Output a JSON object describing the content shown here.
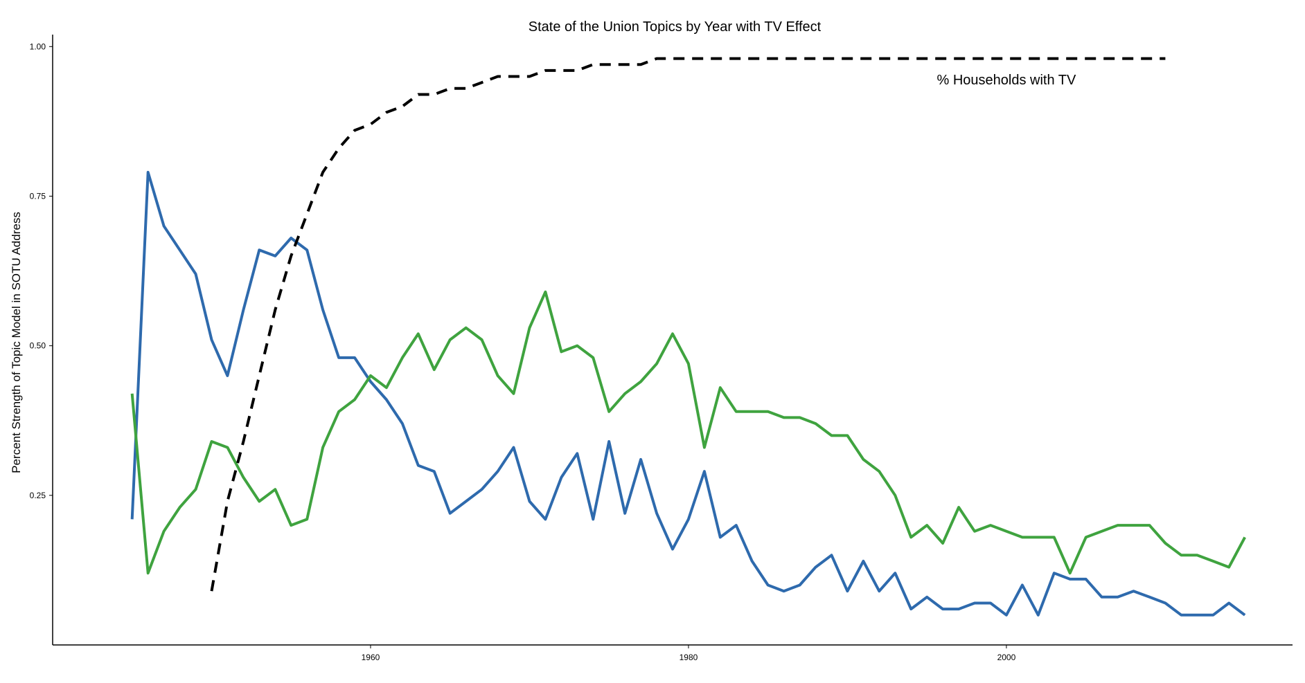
{
  "chart_data": {
    "type": "line",
    "title": "State of the Union Topics by Year with TV Effect",
    "xlabel": "",
    "ylabel": "Percent Strength of Topic Model in SOTU Address",
    "xlim": [
      1940,
      2018
    ],
    "ylim": [
      0.0,
      1.02
    ],
    "x_ticks": [
      1960,
      1980,
      2000
    ],
    "x_tick_labels": [
      "1960",
      "1980",
      "2000"
    ],
    "y_ticks": [
      0.25,
      0.5,
      0.75,
      1.0
    ],
    "y_tick_labels": [
      "0.25",
      "0.50",
      "0.75",
      "1.00"
    ],
    "grid": false,
    "legend": "none",
    "annotations": [
      {
        "text": "% Households with TV",
        "x": 2000,
        "y": 0.945
      }
    ],
    "series": [
      {
        "color": "#2e6aad",
        "style": "solid",
        "x": [
          1945,
          1946,
          1947,
          1948,
          1949,
          1950,
          1951,
          1952,
          1953,
          1954,
          1955,
          1956,
          1957,
          1958,
          1959,
          1960,
          1961,
          1962,
          1963,
          1964,
          1965,
          1966,
          1967,
          1968,
          1969,
          1970,
          1971,
          1972,
          1973,
          1974,
          1975,
          1976,
          1977,
          1978,
          1979,
          1980,
          1981,
          1982,
          1983,
          1984,
          1985,
          1986,
          1987,
          1988,
          1989,
          1990,
          1991,
          1992,
          1993,
          1994,
          1995,
          1996,
          1997,
          1998,
          1999,
          2000,
          2001,
          2002,
          2003,
          2004,
          2005,
          2006,
          2007,
          2008,
          2009,
          2010,
          2011,
          2012,
          2013,
          2014,
          2015
        ],
        "y": [
          0.21,
          0.79,
          0.7,
          0.66,
          0.62,
          0.51,
          0.45,
          0.56,
          0.66,
          0.65,
          0.68,
          0.66,
          0.56,
          0.48,
          0.48,
          0.44,
          0.41,
          0.37,
          0.3,
          0.29,
          0.22,
          0.24,
          0.26,
          0.29,
          0.33,
          0.24,
          0.21,
          0.28,
          0.32,
          0.21,
          0.34,
          0.22,
          0.31,
          0.22,
          0.16,
          0.21,
          0.29,
          0.18,
          0.2,
          0.14,
          0.1,
          0.09,
          0.1,
          0.13,
          0.15,
          0.09,
          0.14,
          0.09,
          0.12,
          0.06,
          0.08,
          0.06,
          0.06,
          0.07,
          0.07,
          0.05,
          0.1,
          0.05,
          0.12,
          0.11,
          0.11,
          0.08,
          0.08,
          0.09,
          0.08,
          0.07,
          0.05,
          0.05,
          0.05,
          0.07,
          0.05
        ]
      },
      {
        "color": "#3fa33f",
        "style": "solid",
        "x": [
          1945,
          1946,
          1947,
          1948,
          1949,
          1950,
          1951,
          1952,
          1953,
          1954,
          1955,
          1956,
          1957,
          1958,
          1959,
          1960,
          1961,
          1962,
          1963,
          1964,
          1965,
          1966,
          1967,
          1968,
          1969,
          1970,
          1971,
          1972,
          1973,
          1974,
          1975,
          1976,
          1977,
          1978,
          1979,
          1980,
          1981,
          1982,
          1983,
          1984,
          1985,
          1986,
          1987,
          1988,
          1989,
          1990,
          1991,
          1992,
          1993,
          1994,
          1995,
          1996,
          1997,
          1998,
          1999,
          2000,
          2001,
          2002,
          2003,
          2004,
          2005,
          2006,
          2007,
          2008,
          2009,
          2010,
          2011,
          2012,
          2013,
          2014,
          2015
        ],
        "y": [
          0.42,
          0.12,
          0.19,
          0.23,
          0.26,
          0.34,
          0.33,
          0.28,
          0.24,
          0.26,
          0.2,
          0.21,
          0.33,
          0.39,
          0.41,
          0.45,
          0.43,
          0.48,
          0.52,
          0.46,
          0.51,
          0.53,
          0.51,
          0.45,
          0.42,
          0.53,
          0.59,
          0.49,
          0.5,
          0.48,
          0.39,
          0.42,
          0.44,
          0.47,
          0.52,
          0.47,
          0.33,
          0.43,
          0.39,
          0.39,
          0.39,
          0.38,
          0.38,
          0.37,
          0.35,
          0.35,
          0.31,
          0.29,
          0.25,
          0.18,
          0.2,
          0.17,
          0.23,
          0.19,
          0.2,
          0.19,
          0.18,
          0.18,
          0.18,
          0.12,
          0.18,
          0.19,
          0.2,
          0.2,
          0.2,
          0.17,
          0.15,
          0.15,
          0.14,
          0.13,
          0.18
        ]
      },
      {
        "name": "% Households with TV",
        "color": "#000000",
        "style": "dashed",
        "x": [
          1950,
          1951,
          1952,
          1953,
          1954,
          1955,
          1956,
          1957,
          1958,
          1959,
          1960,
          1961,
          1962,
          1963,
          1964,
          1965,
          1966,
          1967,
          1968,
          1969,
          1970,
          1971,
          1972,
          1973,
          1974,
          1975,
          1976,
          1977,
          1978,
          1979,
          1980,
          1985,
          1990,
          1995,
          2000,
          2005,
          2010
        ],
        "y": [
          0.09,
          0.24,
          0.34,
          0.45,
          0.56,
          0.65,
          0.72,
          0.79,
          0.83,
          0.86,
          0.87,
          0.89,
          0.9,
          0.92,
          0.92,
          0.93,
          0.93,
          0.94,
          0.95,
          0.95,
          0.95,
          0.96,
          0.96,
          0.96,
          0.97,
          0.97,
          0.97,
          0.97,
          0.98,
          0.98,
          0.98,
          0.98,
          0.98,
          0.98,
          0.98,
          0.98,
          0.98
        ]
      }
    ]
  }
}
